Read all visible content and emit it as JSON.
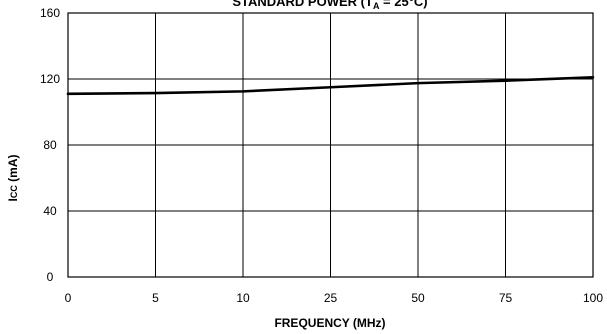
{
  "chart_data": {
    "type": "line",
    "title": {
      "main": "STANDARD POWER (T",
      "sub": "A",
      "end": " = 25°C)"
    },
    "xlabel": "FREQUENCY (MHz)",
    "ylabel": {
      "main": "I",
      "sub": "CC",
      "end": " (mA)"
    },
    "categories": [
      "0",
      "5",
      "10",
      "25",
      "50",
      "75",
      "100"
    ],
    "ylim": [
      0,
      160
    ],
    "yticks": [
      0,
      40,
      80,
      120,
      160
    ],
    "grid": true,
    "series": [
      {
        "values": [
          111,
          111.5,
          112.5,
          115,
          117.5,
          119,
          121
        ]
      }
    ]
  }
}
